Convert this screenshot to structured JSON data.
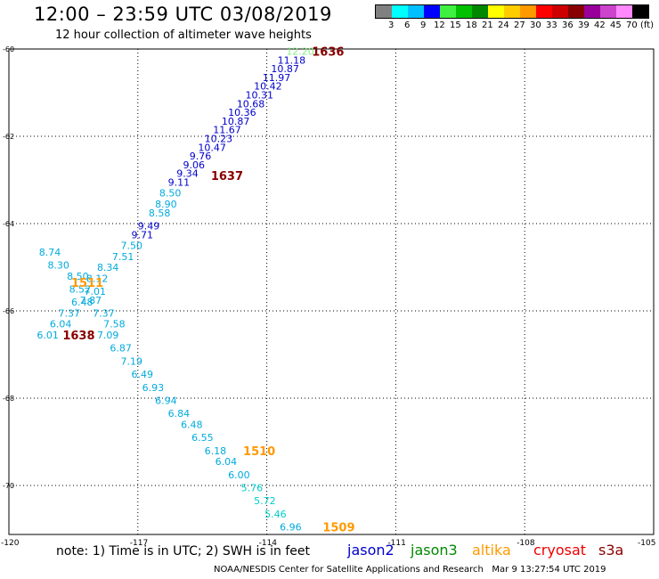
{
  "header": {
    "title": "12:00 – 23:59 UTC 03/08/2019",
    "subtitle": "12 hour collection of altimeter wave heights"
  },
  "color_scale": {
    "colors": [
      "#808080",
      "#00ffff",
      "#00c0ff",
      "#0000ff",
      "#40f040",
      "#00c000",
      "#008800",
      "#ffff00",
      "#ffcc00",
      "#ff9900",
      "#ff0000",
      "#cc0000",
      "#880000",
      "#990099",
      "#cc44cc",
      "#ff88ff",
      "#000000"
    ],
    "labels": [
      "3",
      "6",
      "9",
      "12",
      "15",
      "18",
      "21",
      "24",
      "27",
      "30",
      "33",
      "36",
      "39",
      "42",
      "45",
      "70"
    ],
    "unit": "(ft)"
  },
  "map": {
    "lat_labels": [
      "-60",
      "-62",
      "-64",
      "-66",
      "-68",
      "-70"
    ],
    "lon_labels": [
      "-120",
      "-117",
      "-114",
      "-111",
      "-108",
      "-105"
    ],
    "grid": "dotted",
    "observations": [
      {
        "lon": -113.55,
        "lat": -60.05,
        "value": "12.20",
        "color": "#88ee88"
      },
      {
        "lon": -113.75,
        "lat": -60.25,
        "value": "11.18",
        "color": "#0000cc"
      },
      {
        "lon": -113.9,
        "lat": -60.45,
        "value": "10.87",
        "color": "#0000cc"
      },
      {
        "lon": -114.1,
        "lat": -60.65,
        "value": "11.97",
        "color": "#0000cc"
      },
      {
        "lon": -114.3,
        "lat": -60.85,
        "value": "10.42",
        "color": "#0000cc"
      },
      {
        "lon": -114.5,
        "lat": -61.05,
        "value": "10.31",
        "color": "#0000cc"
      },
      {
        "lon": -114.7,
        "lat": -61.25,
        "value": "10.68",
        "color": "#0000cc"
      },
      {
        "lon": -114.9,
        "lat": -61.45,
        "value": "10.36",
        "color": "#0000cc"
      },
      {
        "lon": -115.05,
        "lat": -61.65,
        "value": "10.87",
        "color": "#0000cc"
      },
      {
        "lon": -115.25,
        "lat": -61.85,
        "value": "11.67",
        "color": "#0000cc"
      },
      {
        "lon": -115.45,
        "lat": -62.05,
        "value": "10.23",
        "color": "#0000cc"
      },
      {
        "lon": -115.6,
        "lat": -62.25,
        "value": "10.47",
        "color": "#0000cc"
      },
      {
        "lon": -115.8,
        "lat": -62.45,
        "value": "9.76",
        "color": "#0000cc"
      },
      {
        "lon": -115.95,
        "lat": -62.65,
        "value": "9.06",
        "color": "#0000cc"
      },
      {
        "lon": -116.1,
        "lat": -62.85,
        "value": "9.34",
        "color": "#0000cc"
      },
      {
        "lon": -116.3,
        "lat": -63.05,
        "value": "9.11",
        "color": "#0000cc"
      },
      {
        "lon": -116.5,
        "lat": -63.3,
        "value": "8.50",
        "color": "#00aadd"
      },
      {
        "lon": -116.6,
        "lat": -63.55,
        "value": "8.90",
        "color": "#00aadd"
      },
      {
        "lon": -116.75,
        "lat": -63.75,
        "value": "8.58",
        "color": "#00aadd"
      },
      {
        "lon": -117.0,
        "lat": -64.05,
        "value": "9.49",
        "color": "#0000cc"
      },
      {
        "lon": -117.15,
        "lat": -64.25,
        "value": "9.71",
        "color": "#0000cc"
      },
      {
        "lon": -117.4,
        "lat": -64.5,
        "value": "7.50",
        "color": "#00aadd"
      },
      {
        "lon": -117.6,
        "lat": -64.75,
        "value": "7.51",
        "color": "#00aadd"
      },
      {
        "lon": -119.3,
        "lat": -64.65,
        "value": "8.74",
        "color": "#00aadd"
      },
      {
        "lon": -119.1,
        "lat": -64.95,
        "value": "8.30",
        "color": "#00aadd"
      },
      {
        "lon": -117.95,
        "lat": -65.0,
        "value": "8.34",
        "color": "#00aadd"
      },
      {
        "lon": -118.65,
        "lat": -65.2,
        "value": "8.50",
        "color": "#00aadd"
      },
      {
        "lon": -118.2,
        "lat": -65.25,
        "value": "8.12",
        "color": "#00aadd"
      },
      {
        "lon": -118.6,
        "lat": -65.5,
        "value": "8.52",
        "color": "#00aadd"
      },
      {
        "lon": -118.25,
        "lat": -65.55,
        "value": "7.01",
        "color": "#00aadd"
      },
      {
        "lon": -118.35,
        "lat": -65.75,
        "value": "7.87",
        "color": "#00aadd"
      },
      {
        "lon": -118.55,
        "lat": -65.8,
        "value": "6.48",
        "color": "#00aadd"
      },
      {
        "lon": -118.85,
        "lat": -66.05,
        "value": "7.37",
        "color": "#00aadd"
      },
      {
        "lon": -118.05,
        "lat": -66.05,
        "value": "7.37",
        "color": "#00aadd"
      },
      {
        "lon": -119.05,
        "lat": -66.3,
        "value": "6.04",
        "color": "#00aadd"
      },
      {
        "lon": -117.8,
        "lat": -66.3,
        "value": "7.58",
        "color": "#00aadd"
      },
      {
        "lon": -119.35,
        "lat": -66.55,
        "value": "6.01",
        "color": "#00aadd"
      },
      {
        "lon": -117.95,
        "lat": -66.55,
        "value": "7.09",
        "color": "#00aadd"
      },
      {
        "lon": -117.65,
        "lat": -66.85,
        "value": "6.87",
        "color": "#00aadd"
      },
      {
        "lon": -117.4,
        "lat": -67.15,
        "value": "7.19",
        "color": "#00aadd"
      },
      {
        "lon": -117.15,
        "lat": -67.45,
        "value": "6.49",
        "color": "#00aadd"
      },
      {
        "lon": -116.9,
        "lat": -67.75,
        "value": "6.93",
        "color": "#00aadd"
      },
      {
        "lon": -116.6,
        "lat": -68.05,
        "value": "6.94",
        "color": "#00aadd"
      },
      {
        "lon": -116.3,
        "lat": -68.35,
        "value": "6.84",
        "color": "#00aadd"
      },
      {
        "lon": -116.0,
        "lat": -68.6,
        "value": "6.48",
        "color": "#00aadd"
      },
      {
        "lon": -115.75,
        "lat": -68.9,
        "value": "6.55",
        "color": "#00aadd"
      },
      {
        "lon": -115.45,
        "lat": -69.2,
        "value": "6.18",
        "color": "#00aadd"
      },
      {
        "lon": -115.2,
        "lat": -69.45,
        "value": "6.04",
        "color": "#00aadd"
      },
      {
        "lon": -114.9,
        "lat": -69.75,
        "value": "6.00",
        "color": "#00aadd"
      },
      {
        "lon": -114.6,
        "lat": -70.05,
        "value": "5.76",
        "color": "#00cccc"
      },
      {
        "lon": -114.3,
        "lat": -70.35,
        "value": "5.72",
        "color": "#00cccc"
      },
      {
        "lon": -114.05,
        "lat": -70.65,
        "value": "5.46",
        "color": "#00cccc"
      },
      {
        "lon": -113.7,
        "lat": -70.95,
        "value": "6.96",
        "color": "#00aadd"
      }
    ],
    "passes": [
      {
        "lon": -112.95,
        "lat": -60.05,
        "time": "1636",
        "color": "#880000"
      },
      {
        "lon": -115.3,
        "lat": -62.9,
        "time": "1637",
        "color": "#880000"
      },
      {
        "lon": -118.55,
        "lat": -65.35,
        "time": "1511",
        "color": "#ff9900"
      },
      {
        "lon": -118.75,
        "lat": -66.55,
        "time": "1638",
        "color": "#880000"
      },
      {
        "lon": -114.55,
        "lat": -69.2,
        "time": "1510",
        "color": "#ff9900"
      },
      {
        "lon": -112.7,
        "lat": -70.95,
        "time": "1509",
        "color": "#ff9900"
      }
    ]
  },
  "legend": {
    "note": "note: 1) Time is in UTC; 2) SWH is in feet",
    "satellites": [
      {
        "name": "jason2",
        "color": "#0000cc"
      },
      {
        "name": "jason3",
        "color": "#008800"
      },
      {
        "name": "altika",
        "color": "#ff9900"
      },
      {
        "name": "cryosat",
        "color": "#ee0000"
      },
      {
        "name": "s3a",
        "color": "#880000"
      }
    ]
  },
  "footer": {
    "credit": "NOAA/NESDIS Center for Satellite Applications and Research",
    "timestamp": "Mar  9 13:27:54 UTC 2019"
  }
}
